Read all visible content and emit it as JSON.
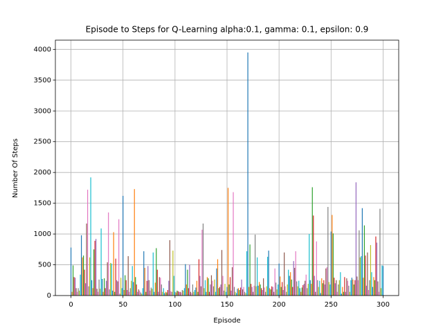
{
  "chart_data": {
    "type": "bar",
    "title": "Episode to Steps for Q-Learning alpha:0.1, gamma: 0.1, epsilon: 0.9",
    "x_label": "Episode",
    "y_label": "Number Of Steps",
    "x": [
      0,
      1,
      2,
      3,
      4,
      5,
      6,
      7,
      8,
      9,
      10,
      11,
      12,
      13,
      14,
      15,
      16,
      17,
      18,
      19,
      20,
      21,
      22,
      23,
      24,
      25,
      26,
      27,
      28,
      29,
      30,
      31,
      32,
      33,
      34,
      35,
      36,
      37,
      38,
      39,
      40,
      41,
      42,
      43,
      44,
      45,
      46,
      47,
      48,
      49,
      50,
      51,
      52,
      53,
      54,
      55,
      56,
      57,
      58,
      59,
      60,
      61,
      62,
      63,
      64,
      65,
      66,
      67,
      68,
      69,
      70,
      71,
      72,
      73,
      74,
      75,
      76,
      77,
      78,
      79,
      80,
      81,
      82,
      83,
      84,
      85,
      86,
      87,
      88,
      89,
      90,
      91,
      92,
      93,
      94,
      95,
      96,
      97,
      98,
      99,
      100,
      101,
      102,
      103,
      104,
      105,
      106,
      107,
      108,
      109,
      110,
      111,
      112,
      113,
      114,
      115,
      116,
      117,
      118,
      119,
      120,
      121,
      122,
      123,
      124,
      125,
      126,
      127,
      128,
      129,
      130,
      131,
      132,
      133,
      134,
      135,
      136,
      137,
      138,
      139,
      140,
      141,
      142,
      143,
      144,
      145,
      146,
      147,
      148,
      149,
      150,
      151,
      152,
      153,
      154,
      155,
      156,
      157,
      158,
      159,
      160,
      161,
      162,
      163,
      164,
      165,
      166,
      167,
      168,
      169,
      170,
      171,
      172,
      173,
      174,
      175,
      176,
      177,
      178,
      179,
      180,
      181,
      182,
      183,
      184,
      185,
      186,
      187,
      188,
      189,
      190,
      191,
      192,
      193,
      194,
      195,
      196,
      197,
      198,
      199,
      200,
      201,
      202,
      203,
      204,
      205,
      206,
      207,
      208,
      209,
      210,
      211,
      212,
      213,
      214,
      215,
      216,
      217,
      218,
      219,
      220,
      221,
      222,
      223,
      224,
      225,
      226,
      227,
      228,
      229,
      230,
      231,
      232,
      233,
      234,
      235,
      236,
      237,
      238,
      239,
      240,
      241,
      242,
      243,
      244,
      245,
      246,
      247,
      248,
      249,
      250,
      251,
      252,
      253,
      254,
      255,
      256,
      257,
      258,
      259,
      260,
      261,
      262,
      263,
      264,
      265,
      266,
      267,
      268,
      269,
      270,
      271,
      272,
      273,
      274,
      275,
      276,
      277,
      278,
      279,
      280,
      281,
      282,
      283,
      284,
      285,
      286,
      287,
      288,
      289,
      290,
      291,
      292,
      293,
      294,
      295,
      296,
      297,
      298,
      299,
      300
    ],
    "values": [
      780,
      60,
      490,
      300,
      290,
      120,
      60,
      120,
      80,
      340,
      980,
      620,
      650,
      420,
      200,
      1170,
      1720,
      150,
      620,
      1920,
      250,
      120,
      750,
      890,
      920,
      110,
      60,
      260,
      110,
      1090,
      270,
      60,
      280,
      120,
      240,
      540,
      1350,
      100,
      530,
      520,
      80,
      1030,
      60,
      600,
      250,
      230,
      1240,
      30,
      290,
      120,
      1620,
      90,
      330,
      250,
      90,
      640,
      60,
      120,
      240,
      480,
      220,
      1730,
      300,
      180,
      60,
      100,
      80,
      50,
      30,
      120,
      720,
      450,
      60,
      240,
      480,
      250,
      80,
      130,
      110,
      700,
      60,
      210,
      770,
      420,
      60,
      300,
      290,
      180,
      60,
      120,
      40,
      60,
      50,
      90,
      240,
      900,
      70,
      60,
      730,
      320,
      60,
      50,
      80,
      70,
      60,
      60,
      50,
      90,
      80,
      120,
      510,
      180,
      420,
      120,
      500,
      60,
      40,
      180,
      60,
      90,
      130,
      240,
      60,
      590,
      320,
      150,
      1070,
      1170,
      120,
      250,
      60,
      300,
      280,
      60,
      180,
      330,
      240,
      150,
      260,
      60,
      440,
      590,
      120,
      140,
      180,
      740,
      320,
      80,
      190,
      60,
      140,
      1750,
      180,
      300,
      80,
      460,
      1680,
      140,
      60,
      40,
      110,
      120,
      90,
      130,
      260,
      100,
      140,
      60,
      40,
      720,
      3950,
      140,
      830,
      190,
      140,
      60,
      160,
      990,
      150,
      620,
      160,
      220,
      180,
      120,
      90,
      280,
      130,
      60,
      150,
      630,
      730,
      120,
      100,
      150,
      140,
      60,
      440,
      210,
      100,
      180,
      520,
      310,
      140,
      220,
      90,
      700,
      150,
      60,
      180,
      420,
      320,
      380,
      260,
      140,
      560,
      450,
      720,
      230,
      150,
      240,
      120,
      60,
      130,
      170,
      190,
      240,
      340,
      120,
      190,
      1000,
      250,
      190,
      1760,
      1300,
      320,
      60,
      880,
      250,
      140,
      240,
      40,
      280,
      200,
      250,
      180,
      440,
      460,
      1440,
      220,
      180,
      1040,
      1310,
      1010,
      290,
      200,
      250,
      60,
      180,
      250,
      380,
      30,
      140,
      60,
      300,
      60,
      280,
      240,
      160,
      60,
      250,
      290,
      260,
      180,
      250,
      1840,
      310,
      250,
      1060,
      620,
      640,
      1420,
      290,
      1140,
      650,
      160,
      700,
      90,
      250,
      820,
      380,
      140,
      300,
      250,
      960,
      860,
      230,
      60,
      1410,
      120,
      490,
      480
    ],
    "colors": [
      "#1f77b4",
      "#ff7f0e",
      "#2ca02c",
      "#d62728",
      "#9467bd",
      "#8c564b",
      "#e377c2",
      "#7f7f7f",
      "#bcbd22",
      "#17becf"
    ],
    "xlim": [
      -15,
      315
    ],
    "xticks": [
      0,
      50,
      100,
      150,
      200,
      250,
      300
    ],
    "ylim": [
      0,
      4150
    ],
    "yticks": [
      0,
      500,
      1000,
      1500,
      2000,
      2500,
      3000,
      3500,
      4000
    ],
    "grid": true
  }
}
